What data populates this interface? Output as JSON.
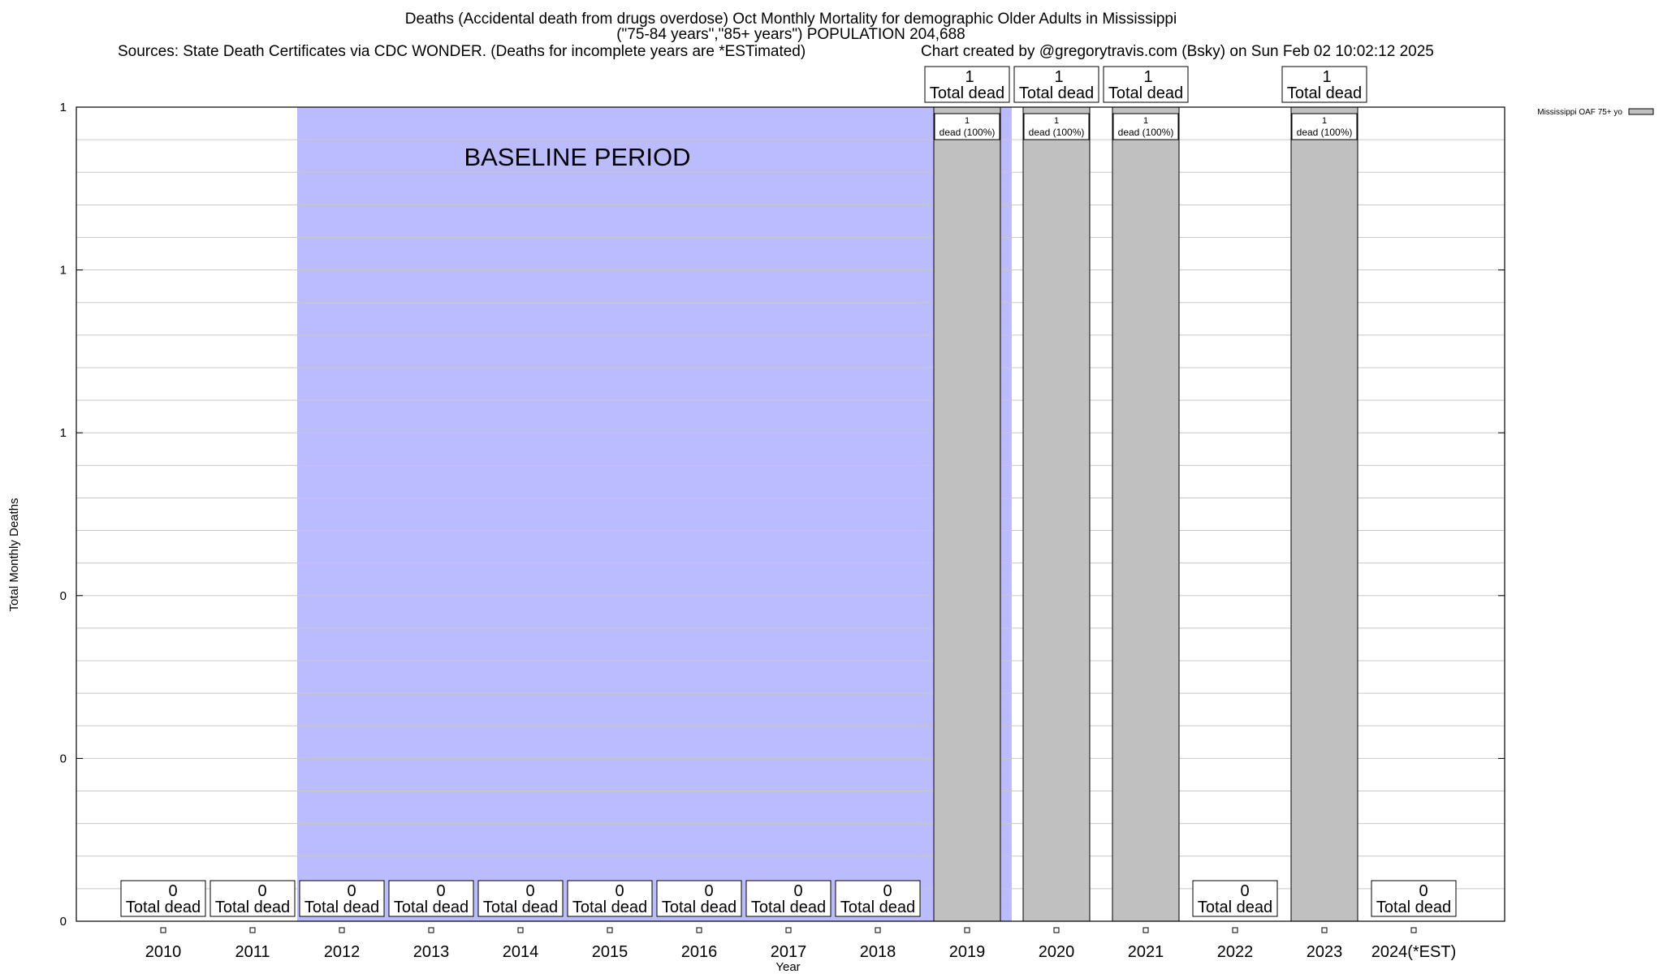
{
  "chart_data": {
    "type": "bar",
    "title": "Deaths (Accidental death from drugs overdose) Oct Monthly Mortality for demographic Older Adults in Mississippi",
    "subtitle": "(\"75-84 years\",\"85+ years\") POPULATION 204,688",
    "source_note": "Sources: State Death Certificates via CDC WONDER. (Deaths for incomplete years are *ESTimated)",
    "credit_note": "Chart created by @gregorytravis.com (Bsky) on Sun Feb 02 10:02:12 2025",
    "xlabel": "Year",
    "ylabel": "Total Monthly Deaths",
    "ylim": [
      0,
      1
    ],
    "y_tick_labels": [
      "0",
      "0",
      "0",
      "1",
      "1",
      "1"
    ],
    "y_tick_values": [
      0,
      0.2,
      0.4,
      0.6,
      0.8,
      1.0
    ],
    "grid": true,
    "legend": {
      "placement": "top-right",
      "entries": [
        "Mississippi OAF 75+ yo"
      ]
    },
    "baseline_label": "BASELINE PERIOD",
    "baseline_range": [
      "2012",
      "2019"
    ],
    "categories": [
      "2010",
      "2011",
      "2012",
      "2013",
      "2014",
      "2015",
      "2016",
      "2017",
      "2018",
      "2019",
      "2020",
      "2021",
      "2022",
      "2023",
      "2024(*EST)"
    ],
    "series": [
      {
        "name": "Mississippi OAF 75+ yo",
        "values": [
          0,
          0,
          0,
          0,
          0,
          0,
          0,
          0,
          0,
          1,
          1,
          1,
          0,
          1,
          0
        ],
        "total_labels": [
          "0",
          "0",
          "0",
          "0",
          "0",
          "0",
          "0",
          "0",
          "0",
          "1",
          "1",
          "1",
          "0",
          "1",
          "0"
        ],
        "total_suffix": "Total dead",
        "inner_labels": [
          "",
          "",
          "",
          "",
          "",
          "",
          "",
          "",
          "",
          "1",
          "1",
          "1",
          "",
          "1",
          ""
        ],
        "inner_suffix": [
          "",
          "",
          "",
          "",
          "",
          "",
          "",
          "",
          "",
          "dead (100%)",
          "dead (100%)",
          "dead (100%)",
          "",
          "dead (100%)",
          ""
        ]
      }
    ],
    "colors": {
      "bar": "#c0c0c0",
      "baseline": "#bbbbff",
      "grid": "#c8c8c8"
    }
  }
}
